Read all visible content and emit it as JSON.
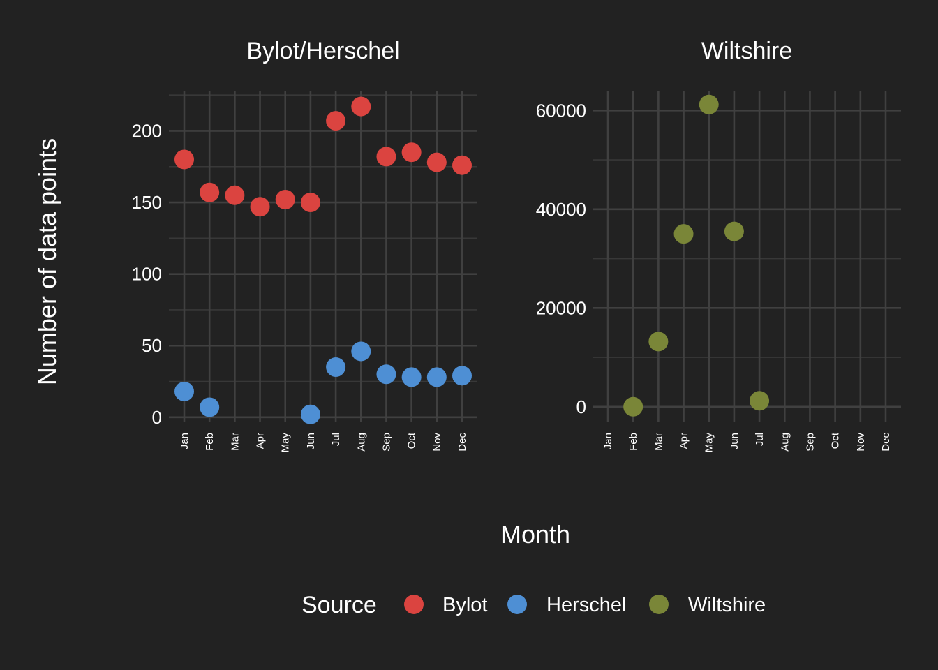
{
  "chart_data": {
    "type": "scatter",
    "xlabel": "Month",
    "ylabel": "Number of data points",
    "legend": {
      "title": "Source",
      "placement": "bottom",
      "entries": [
        {
          "name": "Bylot",
          "color": "#DB4440"
        },
        {
          "name": "Herschel",
          "color": "#4E8FD4"
        },
        {
          "name": "Wiltshire",
          "color": "#7A8638"
        }
      ]
    },
    "categories": [
      "Jan",
      "Feb",
      "Mar",
      "Apr",
      "May",
      "Jun",
      "Jul",
      "Aug",
      "Sep",
      "Oct",
      "Nov",
      "Dec"
    ],
    "grid": true,
    "panels": [
      {
        "title": "Bylot/Herschel",
        "ylim": [
          -3,
          228
        ],
        "yticks": [
          0,
          50,
          100,
          150,
          200
        ],
        "series": [
          {
            "name": "Bylot",
            "color": "#DB4440",
            "points": [
              [
                "Jan",
                180
              ],
              [
                "Feb",
                157
              ],
              [
                "Mar",
                155
              ],
              [
                "Apr",
                147
              ],
              [
                "May",
                152
              ],
              [
                "Jun",
                150
              ],
              [
                "Jul",
                207
              ],
              [
                "Aug",
                217
              ],
              [
                "Sep",
                182
              ],
              [
                "Oct",
                185
              ],
              [
                "Nov",
                178
              ],
              [
                "Dec",
                176
              ]
            ]
          },
          {
            "name": "Herschel",
            "color": "#4E8FD4",
            "points": [
              [
                "Jan",
                18
              ],
              [
                "Feb",
                7
              ],
              [
                "Jun",
                2
              ],
              [
                "Jul",
                35
              ],
              [
                "Aug",
                46
              ],
              [
                "Sep",
                30
              ],
              [
                "Oct",
                28
              ],
              [
                "Nov",
                28
              ],
              [
                "Dec",
                29
              ]
            ]
          }
        ]
      },
      {
        "title": "Wiltshire",
        "ylim": [
          -3000,
          64000
        ],
        "yticks": [
          0,
          20000,
          40000,
          60000
        ],
        "series": [
          {
            "name": "Wiltshire",
            "color": "#7A8638",
            "points": [
              [
                "Feb",
                0
              ],
              [
                "Mar",
                13200
              ],
              [
                "Apr",
                35000
              ],
              [
                "May",
                61200
              ],
              [
                "Jun",
                35500
              ],
              [
                "Jul",
                1200
              ]
            ]
          }
        ]
      }
    ]
  }
}
